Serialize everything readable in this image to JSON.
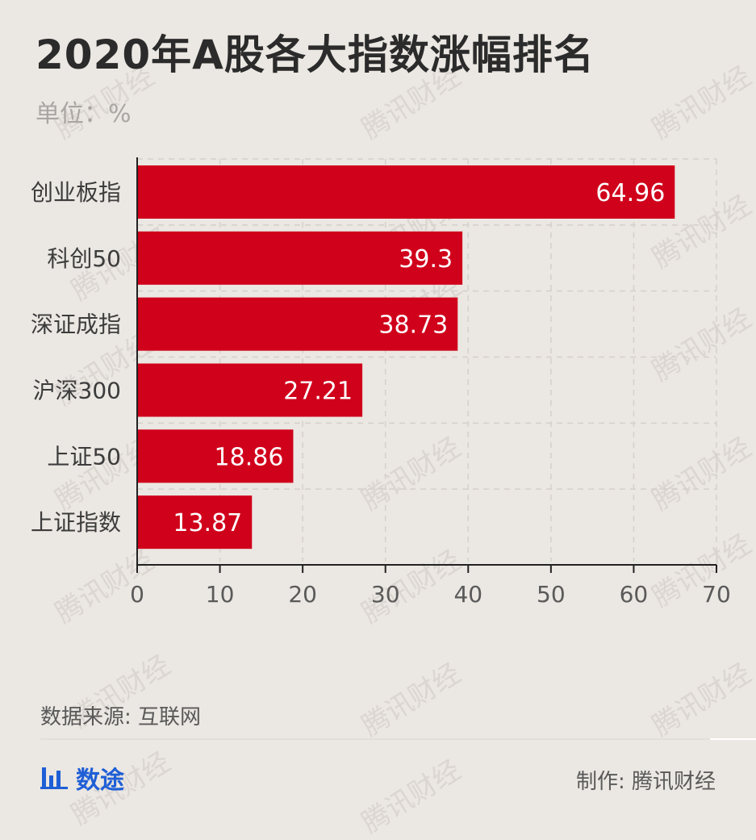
{
  "header": {
    "title": "2020年A股各大指数涨幅排名",
    "unit": "单位：%"
  },
  "chart_data": {
    "type": "bar",
    "orientation": "horizontal",
    "categories": [
      "创业板指",
      "科创50",
      "深证成指",
      "沪深300",
      "上证50",
      "上证指数"
    ],
    "values": [
      64.96,
      39.3,
      38.73,
      27.21,
      18.86,
      13.87
    ],
    "xlim": [
      0,
      70
    ],
    "xticks": [
      "0",
      "10",
      "20",
      "30",
      "40",
      "50",
      "60",
      "70"
    ],
    "grid": true,
    "bar_color": "#d0011b",
    "label_color": "#ffffff"
  },
  "footer": {
    "source": "数据来源: 互联网",
    "logo_text": "数途",
    "logo_icon": "bar-chart-icon",
    "credit": "制作: 腾讯财经"
  },
  "watermark": "腾讯财经"
}
